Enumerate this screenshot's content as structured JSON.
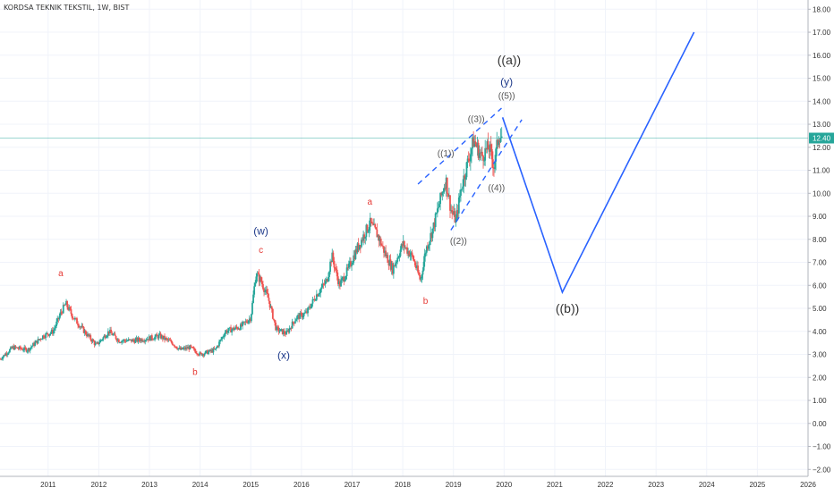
{
  "chart_data": {
    "type": "candlestick",
    "title": "KORDSA TEKNIK TEKSTIL, 1W, BIST",
    "current_price_label": "12.40",
    "current_price": 12.4,
    "x_ticks": [
      "2011",
      "2012",
      "2013",
      "2014",
      "2015",
      "2016",
      "2017",
      "2018",
      "2019",
      "2020",
      "2021",
      "2022",
      "2023",
      "2024",
      "2025",
      "2026"
    ],
    "y_ticks": [
      "−2.00",
      "−1.00",
      "0.00",
      "1.00",
      "2.00",
      "3.00",
      "4.00",
      "5.00",
      "6.00",
      "7.00",
      "8.00",
      "9.00",
      "10.00",
      "11.00",
      "12.00",
      "13.00",
      "14.00",
      "15.00",
      "16.00",
      "17.00",
      "18.00"
    ],
    "xlim": [
      2010.05,
      2026.0
    ],
    "ylim": [
      -2.3,
      18.4
    ],
    "price_path": [
      [
        2010.05,
        2.8
      ],
      [
        2010.3,
        3.3
      ],
      [
        2010.6,
        3.2
      ],
      [
        2010.9,
        3.8
      ],
      [
        2011.1,
        4.0
      ],
      [
        2011.25,
        4.8
      ],
      [
        2011.35,
        5.2
      ],
      [
        2011.5,
        4.6
      ],
      [
        2011.75,
        3.9
      ],
      [
        2011.95,
        3.4
      ],
      [
        2012.2,
        4.0
      ],
      [
        2012.4,
        3.6
      ],
      [
        2012.7,
        3.6
      ],
      [
        2013.0,
        3.7
      ],
      [
        2013.2,
        3.8
      ],
      [
        2013.45,
        3.5
      ],
      [
        2013.6,
        3.2
      ],
      [
        2013.8,
        3.3
      ],
      [
        2014.0,
        3.0
      ],
      [
        2014.3,
        3.2
      ],
      [
        2014.5,
        4.0
      ],
      [
        2014.8,
        4.2
      ],
      [
        2015.0,
        4.6
      ],
      [
        2015.1,
        6.5
      ],
      [
        2015.2,
        6.2
      ],
      [
        2015.35,
        5.4
      ],
      [
        2015.5,
        4.1
      ],
      [
        2015.7,
        3.9
      ],
      [
        2015.9,
        4.6
      ],
      [
        2016.1,
        4.8
      ],
      [
        2016.3,
        5.6
      ],
      [
        2016.5,
        6.2
      ],
      [
        2016.6,
        7.3
      ],
      [
        2016.75,
        6.0
      ],
      [
        2016.9,
        6.6
      ],
      [
        2017.1,
        7.6
      ],
      [
        2017.35,
        8.7
      ],
      [
        2017.5,
        8.2
      ],
      [
        2017.65,
        7.4
      ],
      [
        2017.8,
        6.7
      ],
      [
        2018.0,
        7.8
      ],
      [
        2018.2,
        7.2
      ],
      [
        2018.35,
        6.2
      ],
      [
        2018.45,
        7.5
      ],
      [
        2018.6,
        8.5
      ],
      [
        2018.75,
        9.8
      ],
      [
        2018.85,
        10.6
      ],
      [
        2018.95,
        9.3
      ],
      [
        2019.05,
        8.8
      ],
      [
        2019.15,
        10.2
      ],
      [
        2019.3,
        11.5
      ],
      [
        2019.4,
        12.3
      ],
      [
        2019.55,
        11.6
      ],
      [
        2019.7,
        12.0
      ],
      [
        2019.8,
        11.2
      ],
      [
        2019.9,
        12.6
      ],
      [
        2019.97,
        12.4
      ]
    ],
    "projection": {
      "series_color": "#2962ff",
      "points": [
        [
          2019.97,
          13.3
        ],
        [
          2021.15,
          5.7
        ],
        [
          2023.75,
          17.0
        ]
      ]
    },
    "channel": {
      "color": "#2962ff",
      "upper": [
        [
          2018.3,
          10.4
        ],
        [
          2019.95,
          13.7
        ]
      ],
      "lower": [
        [
          2018.95,
          8.4
        ],
        [
          2020.35,
          13.2
        ]
      ]
    },
    "annotations": [
      {
        "text": "a",
        "x": 2011.25,
        "y": 6.4,
        "color": "#e53935"
      },
      {
        "text": "b",
        "x": 2013.9,
        "y": 2.1,
        "color": "#e53935"
      },
      {
        "text": "c",
        "x": 2015.2,
        "y": 7.4,
        "color": "#e53935"
      },
      {
        "text": "(w)",
        "x": 2015.2,
        "y": 8.2,
        "color": "#1e3a8a"
      },
      {
        "text": "(x)",
        "x": 2015.65,
        "y": 2.8,
        "color": "#1e3a8a"
      },
      {
        "text": "a",
        "x": 2017.35,
        "y": 9.5,
        "color": "#e53935"
      },
      {
        "text": "b",
        "x": 2018.45,
        "y": 5.2,
        "color": "#e53935"
      },
      {
        "text": "((1))",
        "x": 2018.85,
        "y": 11.6,
        "color": "#555555"
      },
      {
        "text": "((2))",
        "x": 2019.1,
        "y": 7.8,
        "color": "#555555"
      },
      {
        "text": "((3))",
        "x": 2019.45,
        "y": 13.1,
        "color": "#555555"
      },
      {
        "text": "((4))",
        "x": 2019.85,
        "y": 10.1,
        "color": "#555555"
      },
      {
        "text": "((5))",
        "x": 2020.05,
        "y": 14.1,
        "color": "#555555"
      },
      {
        "text": "(y)",
        "x": 2020.05,
        "y": 14.7,
        "color": "#1e3a8a"
      },
      {
        "text": "((a))",
        "x": 2020.1,
        "y": 15.6,
        "color": "#333333"
      },
      {
        "text": "((b))",
        "x": 2021.25,
        "y": 4.8,
        "color": "#333333"
      }
    ]
  }
}
